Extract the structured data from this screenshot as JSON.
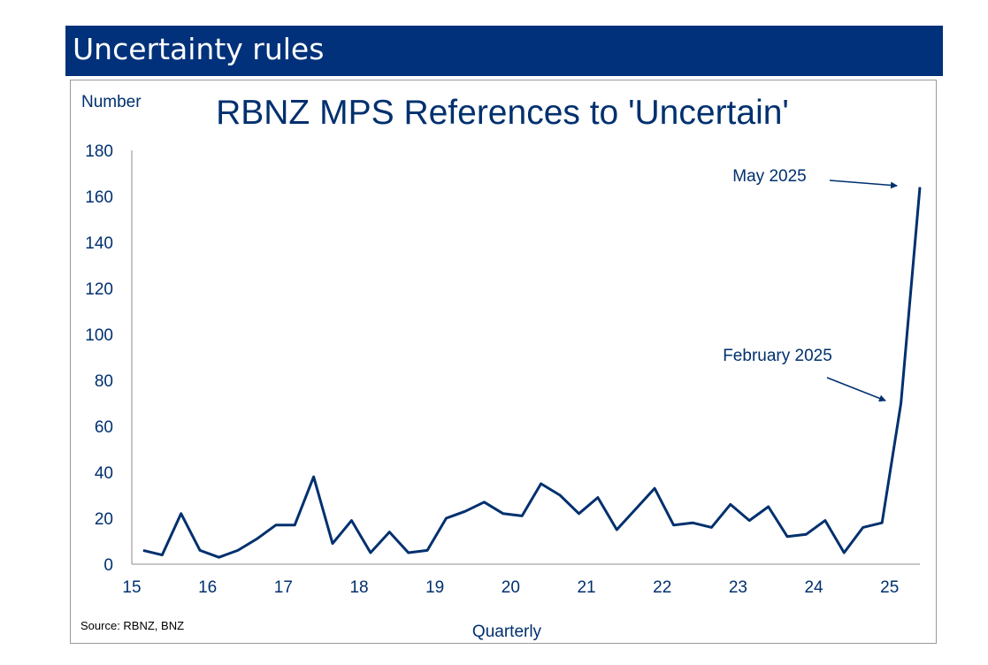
{
  "slide": {
    "title": "Uncertainty rules"
  },
  "chart_data": {
    "type": "line",
    "title": "RBNZ MPS References to 'Uncertain'",
    "ylabel": "Number",
    "xlabel": "Quarterly",
    "source": "Source: RBNZ, BNZ",
    "ylim": [
      0,
      180
    ],
    "xlim": [
      15,
      25.4
    ],
    "yticks": [
      0,
      20,
      40,
      60,
      80,
      100,
      120,
      140,
      160,
      180
    ],
    "xticks": [
      15,
      16,
      17,
      18,
      19,
      20,
      21,
      22,
      23,
      24,
      25
    ],
    "grid": false,
    "line_color": "#00306e",
    "series": [
      {
        "x": [
          15.15,
          15.4,
          15.65,
          15.9,
          16.15,
          16.4,
          16.65,
          16.9,
          17.15,
          17.4,
          17.65,
          17.9,
          18.15,
          18.4,
          18.65,
          18.9,
          19.15,
          19.4,
          19.65,
          19.9,
          20.15,
          20.4,
          20.65,
          20.9,
          21.15,
          21.4,
          21.65,
          21.9,
          22.15,
          22.4,
          22.65,
          22.9,
          23.15,
          23.4,
          23.65,
          23.9,
          24.15,
          24.4,
          24.65,
          24.9,
          25.15,
          25.4
        ],
        "values": [
          6,
          4,
          22,
          6,
          3,
          6,
          11,
          17,
          17,
          38,
          9,
          19,
          5,
          14,
          5,
          6,
          20,
          23,
          27,
          22,
          21,
          35,
          30,
          22,
          29,
          15,
          24,
          33,
          17,
          18,
          16,
          26,
          19,
          25,
          12,
          13,
          19,
          5,
          16,
          18,
          70,
          164
        ]
      }
    ],
    "annotations": [
      {
        "text": "May 2025",
        "x": 25.4,
        "y": 164
      },
      {
        "text": "February 2025",
        "x": 25.15,
        "y": 70
      }
    ]
  }
}
